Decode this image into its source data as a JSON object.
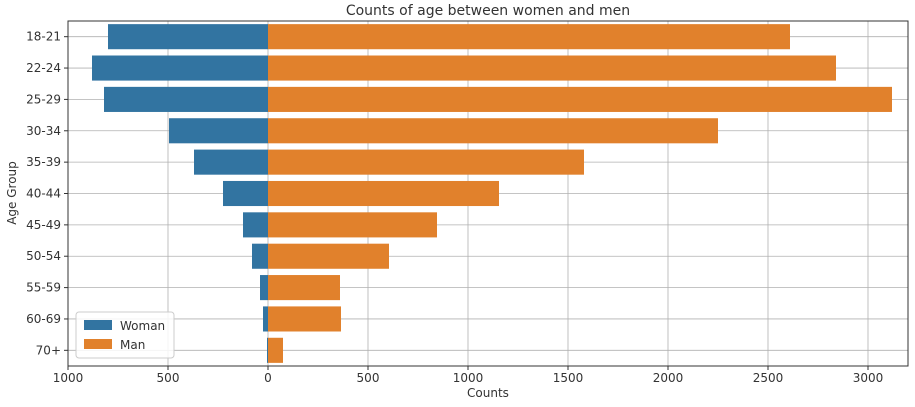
{
  "chart_data": {
    "type": "bar",
    "orientation": "horizontal",
    "title": "Counts of age between women and men",
    "xlabel": "Counts",
    "ylabel": "Age Group",
    "xlim": [
      -1000,
      3200
    ],
    "xticks": [
      -1000,
      -500,
      0,
      500,
      1000,
      1500,
      2000,
      2500,
      3000
    ],
    "xtick_labels": [
      "1000",
      "500",
      "0",
      "500",
      "1000",
      "1500",
      "2000",
      "2500",
      "3000"
    ],
    "categories": [
      "18-21",
      "22-24",
      "25-29",
      "30-34",
      "35-39",
      "40-44",
      "45-49",
      "50-54",
      "55-59",
      "60-69",
      "70+"
    ],
    "series": [
      {
        "name": "Woman",
        "color": "#3274a1",
        "values": [
          -800,
          -880,
          -820,
          -495,
          -370,
          -225,
          -125,
          -80,
          -40,
          -25,
          -5
        ]
      },
      {
        "name": "Man",
        "color": "#e1812c",
        "values": [
          2610,
          2840,
          3120,
          2250,
          1580,
          1155,
          845,
          605,
          360,
          365,
          75
        ]
      }
    ],
    "grid": true,
    "legend_position": "bottom-left"
  }
}
